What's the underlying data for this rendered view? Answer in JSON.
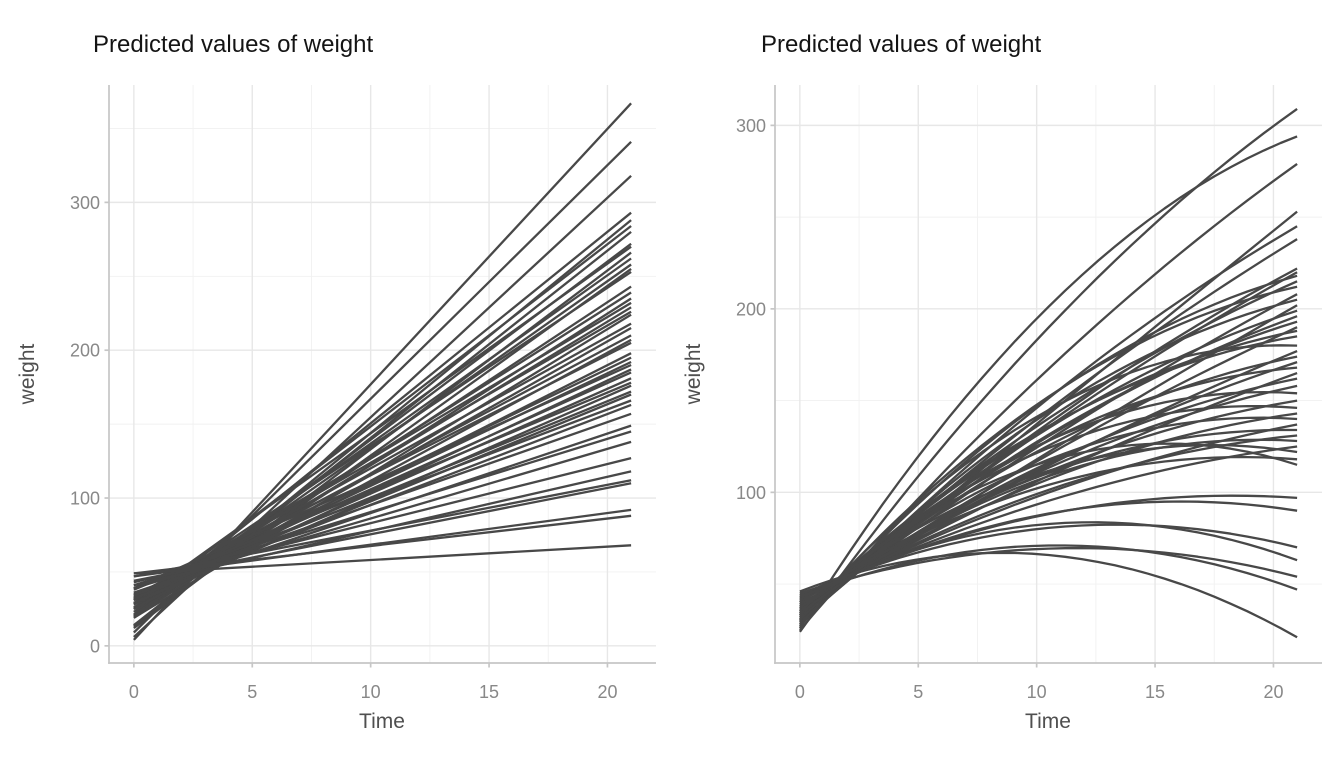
{
  "style": {
    "background": "#ffffff",
    "line_color": "#484848",
    "grid_major_color": "#e7e7e7",
    "grid_minor_color": "#f1f1f1",
    "axis_line_color": "#c6c6c6",
    "tick_mark_color": "#c6c6c6",
    "tick_label_color": "#888888",
    "axis_title_color": "#4f4f4f",
    "title_color": "#141414"
  },
  "chart_data": [
    {
      "panel": "left",
      "type": "line",
      "title": "Predicted values of weight",
      "xlabel": "Time",
      "ylabel": "weight",
      "x_ticks": [
        0,
        5,
        10,
        15,
        20
      ],
      "x_minor": [
        2.5,
        7.5,
        12.5,
        17.5
      ],
      "y_ticks": [
        0,
        100,
        200,
        300
      ],
      "y_minor": [
        50,
        150,
        250,
        350
      ],
      "xlim": [
        -1.05,
        22.05
      ],
      "ylim": [
        -11.6,
        379.4
      ],
      "time_range": [
        0,
        21
      ],
      "legend": "none",
      "grid": true,
      "model": "linear group-level predictions; each line runs from weight w0 at Time 0 to w21 at Time 21",
      "lines_format": [
        "w0",
        "w21"
      ],
      "lines": [
        [
          4,
          367
        ],
        [
          9,
          341
        ],
        [
          6,
          318
        ],
        [
          21,
          293
        ],
        [
          13,
          288
        ],
        [
          25,
          284
        ],
        [
          14,
          280
        ],
        [
          19,
          272
        ],
        [
          29,
          270
        ],
        [
          12,
          266
        ],
        [
          23,
          262
        ],
        [
          21,
          258
        ],
        [
          14,
          255
        ],
        [
          28,
          253
        ],
        [
          21,
          243
        ],
        [
          26,
          239
        ],
        [
          20,
          235
        ],
        [
          31,
          232
        ],
        [
          25,
          229
        ],
        [
          31,
          226
        ],
        [
          19,
          224
        ],
        [
          31,
          218
        ],
        [
          25,
          215
        ],
        [
          31,
          210
        ],
        [
          25,
          207
        ],
        [
          34,
          205
        ],
        [
          28,
          198
        ],
        [
          33,
          195
        ],
        [
          32,
          192
        ],
        [
          39,
          190
        ],
        [
          29,
          187
        ],
        [
          34,
          185
        ],
        [
          32,
          181
        ],
        [
          38,
          178
        ],
        [
          29,
          176
        ],
        [
          35,
          172
        ],
        [
          32,
          170
        ],
        [
          39,
          166
        ],
        [
          34,
          163
        ],
        [
          39,
          157
        ],
        [
          36,
          149
        ],
        [
          41,
          145
        ],
        [
          39,
          138
        ],
        [
          43,
          127
        ],
        [
          41,
          118
        ],
        [
          47,
          112
        ],
        [
          44,
          110
        ],
        [
          47,
          92
        ],
        [
          49,
          88
        ],
        [
          49,
          68
        ]
      ]
    },
    {
      "panel": "right",
      "type": "line",
      "title": "Predicted values of weight",
      "xlabel": "Time",
      "ylabel": "weight",
      "x_ticks": [
        0,
        5,
        10,
        15,
        20
      ],
      "x_minor": [
        2.5,
        7.5,
        12.5,
        17.5
      ],
      "y_ticks": [
        100,
        200,
        300
      ],
      "y_minor": [
        50,
        150,
        250
      ],
      "xlim": [
        -1.05,
        22.05
      ],
      "ylim": [
        7,
        322
      ],
      "time_range": [
        0,
        21
      ],
      "legend": "none",
      "grid": true,
      "model": "quadratic group-level predictions; each curve passes through (0,w0), (tp,wp) and (21,w21)",
      "lines_format": [
        "w0",
        "w21",
        "tp",
        "wp"
      ],
      "lines": [
        [
          24,
          309,
          1.7,
          54
        ],
        [
          26,
          294,
          1.6,
          58
        ],
        [
          25,
          279,
          1.9,
          53
        ],
        [
          30,
          253,
          2.5,
          57
        ],
        [
          28,
          245,
          2.1,
          55
        ],
        [
          31,
          238,
          1.8,
          52
        ],
        [
          29,
          222,
          2.4,
          56
        ],
        [
          33,
          220,
          2.0,
          54
        ],
        [
          27,
          218,
          2.2,
          58
        ],
        [
          35,
          215,
          1.6,
          53
        ],
        [
          30,
          212,
          1.7,
          54
        ],
        [
          34,
          208,
          2.3,
          56
        ],
        [
          28,
          205,
          1.9,
          53
        ],
        [
          36,
          202,
          2.5,
          57
        ],
        [
          31,
          199,
          2.1,
          55
        ],
        [
          33,
          196,
          1.8,
          52
        ],
        [
          29,
          193,
          2.4,
          56
        ],
        [
          37,
          190,
          2.0,
          54
        ],
        [
          32,
          188,
          2.2,
          58
        ],
        [
          34,
          185,
          1.6,
          53
        ],
        [
          30,
          180,
          1.7,
          54
        ],
        [
          38,
          177,
          2.3,
          56
        ],
        [
          33,
          174,
          1.9,
          53
        ],
        [
          36,
          171,
          2.5,
          57
        ],
        [
          31,
          168,
          2.1,
          55
        ],
        [
          39,
          165,
          1.8,
          52
        ],
        [
          34,
          162,
          2.4,
          56
        ],
        [
          37,
          158,
          2.0,
          54
        ],
        [
          32,
          154,
          2.2,
          58
        ],
        [
          40,
          150,
          1.6,
          53
        ],
        [
          35,
          146,
          1.7,
          54
        ],
        [
          38,
          143,
          2.3,
          56
        ],
        [
          33,
          140,
          1.9,
          53
        ],
        [
          41,
          137,
          2.5,
          57
        ],
        [
          36,
          134,
          2.1,
          55
        ],
        [
          39,
          131,
          1.8,
          52
        ],
        [
          34,
          128,
          2.4,
          56
        ],
        [
          42,
          125,
          2.0,
          54
        ],
        [
          37,
          122,
          2.2,
          58
        ],
        [
          40,
          118,
          1.6,
          53
        ],
        [
          35,
          115,
          1.7,
          54
        ],
        [
          43,
          97,
          2.3,
          56
        ],
        [
          41,
          90,
          1.9,
          53
        ],
        [
          44,
          70,
          2.5,
          57
        ],
        [
          42,
          63,
          2.1,
          55
        ],
        [
          45,
          54,
          1.8,
          52
        ],
        [
          43,
          47,
          2.4,
          54
        ],
        [
          46,
          21,
          1.8,
          54
        ]
      ]
    }
  ]
}
